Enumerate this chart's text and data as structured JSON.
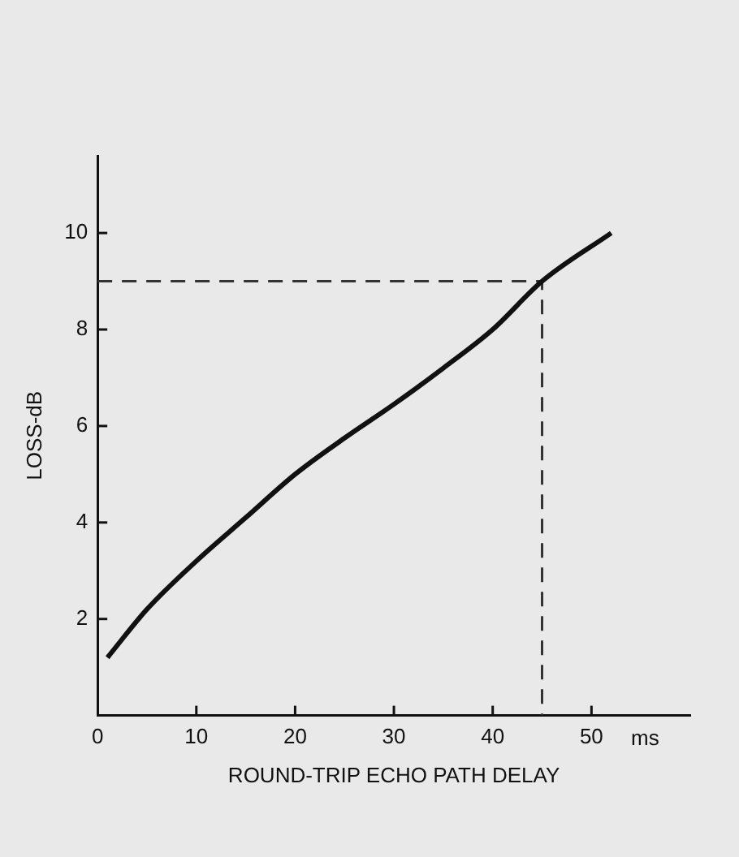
{
  "chart_data": {
    "type": "line",
    "xlabel": "ROUND-TRIP ECHO PATH DELAY",
    "ylabel": "LOSS-dB",
    "annotations": [
      "ms"
    ],
    "xlim": [
      0,
      60
    ],
    "ylim": [
      0,
      11.6
    ],
    "xticks": [
      0,
      10,
      20,
      30,
      40,
      50
    ],
    "yticks": [
      2,
      4,
      6,
      8,
      10
    ],
    "grid": false,
    "legend": false,
    "marker": "none",
    "series": [
      {
        "color": "#111111",
        "line_style": "solid",
        "x": [
          1,
          5,
          10,
          15,
          20,
          25,
          30,
          35,
          40,
          45,
          52
        ],
        "values": [
          1.2,
          2.2,
          3.2,
          4.1,
          5.0,
          5.75,
          6.45,
          7.2,
          8.0,
          9.0,
          10.0
        ]
      },
      {
        "color": "#333333",
        "line_style": "dashed",
        "x": [
          0,
          45,
          45
        ],
        "values": [
          9,
          9,
          0
        ]
      }
    ]
  }
}
